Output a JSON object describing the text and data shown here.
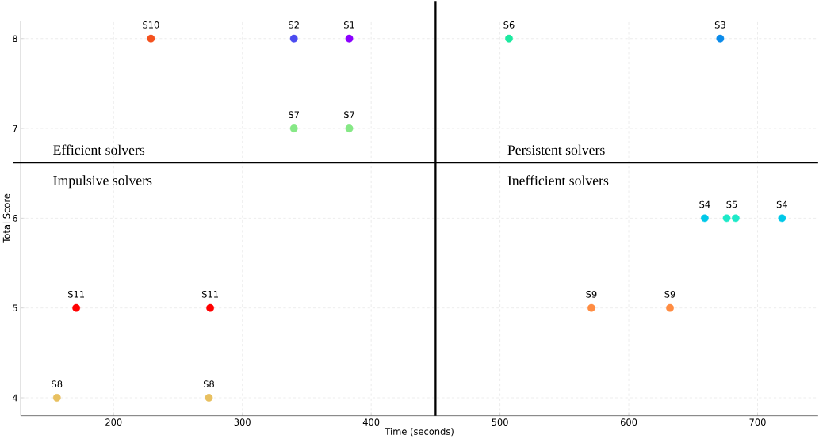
{
  "chart_data": {
    "type": "scatter",
    "xlabel": "Time (seconds)",
    "ylabel": "Total Score",
    "x": [
      229,
      340,
      383,
      340,
      383,
      507,
      671,
      659,
      676,
      683,
      719,
      571,
      632,
      171,
      275,
      156,
      274
    ],
    "values": [
      8,
      8,
      8,
      7,
      7,
      8,
      8,
      6,
      6,
      6,
      6,
      5,
      5,
      5,
      5,
      4,
      4
    ],
    "colors": [
      "#f4511e",
      "#4b4bf0",
      "#8b00ff",
      "#86e886",
      "#86e886",
      "#1de9a0",
      "#0b8bea",
      "#00c8e8",
      "#1de9c8",
      "#1de9c8",
      "#00c8e8",
      "#ff8c42",
      "#ff8c42",
      "#ff0000",
      "#ff0000",
      "#e8c060",
      "#e8c060"
    ],
    "xlim": [
      128,
      747
    ],
    "ylim": [
      3.8,
      8.2
    ],
    "xticks": [
      200,
      300,
      400,
      500,
      600,
      700
    ],
    "yticks": [
      4,
      5,
      6,
      7,
      8
    ],
    "grid": true,
    "ref_lines": [
      {
        "axis": "x",
        "value": 450,
        "color": "#000000"
      },
      {
        "axis": "y",
        "value": 6.62,
        "color": "#000000"
      }
    ],
    "annotations": [
      "Efficient solvers",
      "Persistent solvers",
      "Impulsive solvers",
      "Inefficient solvers",
      {
        "text": "S10",
        "x": 229,
        "y": 8
      },
      {
        "text": "S2",
        "x": 340,
        "y": 8
      },
      {
        "text": "S1",
        "x": 383,
        "y": 8
      },
      {
        "text": "S7",
        "x": 340,
        "y": 7
      },
      {
        "text": "S7",
        "x": 383,
        "y": 7
      },
      {
        "text": "S6",
        "x": 507,
        "y": 8
      },
      {
        "text": "S3",
        "x": 671,
        "y": 8
      },
      {
        "text": "S4",
        "x": 659,
        "y": 6
      },
      {
        "text": "S5",
        "x": 680,
        "y": 6
      },
      {
        "text": "S4",
        "x": 719,
        "y": 6
      },
      {
        "text": "S9",
        "x": 571,
        "y": 5
      },
      {
        "text": "S9",
        "x": 632,
        "y": 5
      },
      {
        "text": "S11",
        "x": 171,
        "y": 5
      },
      {
        "text": "S11",
        "x": 275,
        "y": 5
      },
      {
        "text": "S8",
        "x": 156,
        "y": 4
      },
      {
        "text": "S8",
        "x": 274,
        "y": 4
      }
    ]
  }
}
